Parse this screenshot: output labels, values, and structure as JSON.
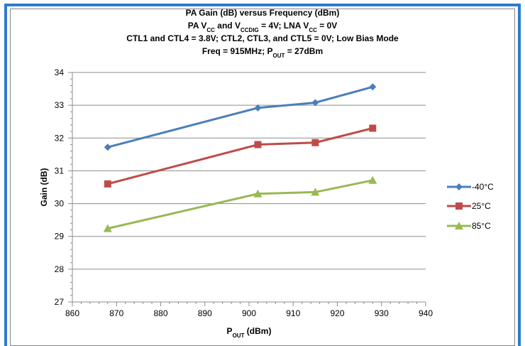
{
  "chart_data": {
    "type": "line",
    "title_lines": [
      [
        {
          "t": "PA Gain (dB) versus Frequency (dBm)"
        }
      ],
      [
        {
          "t": "PA V"
        },
        {
          "t": "CC",
          "sub": true
        },
        {
          "t": " and V"
        },
        {
          "t": "CCDIG",
          "sub": true
        },
        {
          "t": " = 4V; LNA V"
        },
        {
          "t": "CC",
          "sub": true
        },
        {
          "t": " = 0V"
        }
      ],
      [
        {
          "t": "CTL1 and CTL4 = 3.8V; CTL2, CTL3, and CTL5 = 0V; Low Bias Mode"
        }
      ],
      [
        {
          "t": "Freq = 915MHz; P"
        },
        {
          "t": "OUT",
          "sub": true
        },
        {
          "t": " = 27dBm"
        }
      ]
    ],
    "xlabel": [
      {
        "t": "P"
      },
      {
        "t": "OUT",
        "sub": true
      },
      {
        "t": " (dBm)"
      }
    ],
    "ylabel": "Gain (dB)",
    "xlim": [
      860,
      940
    ],
    "ylim": [
      27,
      34
    ],
    "xticks": [
      860,
      870,
      880,
      890,
      900,
      910,
      920,
      930,
      940
    ],
    "yticks": [
      27,
      28,
      29,
      30,
      31,
      32,
      33,
      34
    ],
    "grid": true,
    "legend_position": "right",
    "series": [
      {
        "name": "-40°C",
        "color": "#4a7ebb",
        "marker": "diamond",
        "x": [
          868,
          902,
          915,
          928
        ],
        "y": [
          31.72,
          32.92,
          33.08,
          33.56
        ]
      },
      {
        "name": "25°C",
        "color": "#be4b48",
        "marker": "square",
        "x": [
          868,
          902,
          915,
          928
        ],
        "y": [
          30.6,
          31.8,
          31.86,
          32.3
        ]
      },
      {
        "name": "85°C",
        "color": "#98b954",
        "marker": "triangle",
        "x": [
          868,
          902,
          915,
          928
        ],
        "y": [
          29.24,
          30.3,
          30.35,
          30.71
        ]
      }
    ]
  },
  "colors": {
    "frame_border": "#2e7bcf",
    "chart_border": "#868686",
    "grid": "#8c8c8c"
  }
}
